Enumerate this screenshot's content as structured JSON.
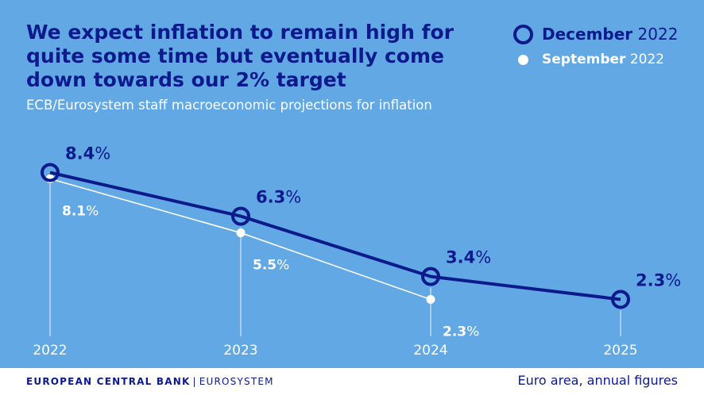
{
  "header": {
    "title": "We expect inflation to remain high for quite some time but eventually come down towards our 2% target",
    "subtitle": "ECB/Eurosystem staff macroeconomic projections for inflation"
  },
  "legend": {
    "december": {
      "month": "December",
      "year": "2022"
    },
    "september": {
      "month": "September",
      "year": "2022"
    }
  },
  "colors": {
    "background": "#62a8e5",
    "december_series": "#0d1a8c",
    "september_series": "#ffffff",
    "gridline": "#d4e6f7"
  },
  "chart_data": {
    "type": "line",
    "x": [
      "2022",
      "2023",
      "2024",
      "2025"
    ],
    "unit": "%",
    "series": [
      {
        "name": "December 2022",
        "values": [
          8.4,
          6.3,
          3.4,
          2.3
        ]
      },
      {
        "name": "September 2022",
        "values": [
          8.1,
          5.5,
          2.3,
          null
        ]
      }
    ],
    "grid": "vertical"
  },
  "footer": {
    "org_main": "EUROPEAN CENTRAL BANK",
    "separator": "|",
    "org_sub": "EUROSYSTEM",
    "note": "Euro area, annual figures"
  }
}
